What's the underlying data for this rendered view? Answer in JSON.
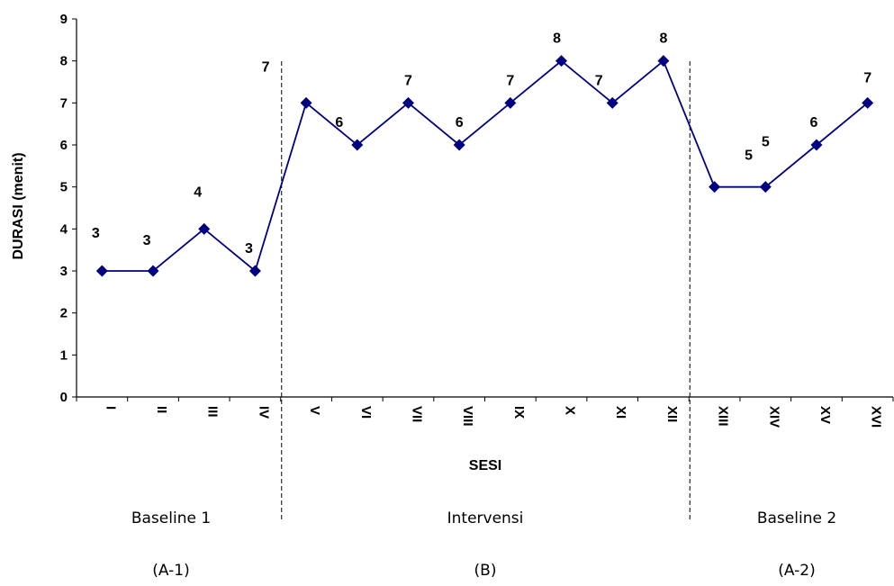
{
  "chart_data": {
    "type": "line",
    "xlabel": "SESI",
    "ylabel": "DURASI (menit)",
    "ylim": [
      0,
      9
    ],
    "yticks": [
      0,
      1,
      2,
      3,
      4,
      5,
      6,
      7,
      8,
      9
    ],
    "categories": [
      "I",
      "II",
      "III",
      "IV",
      "V",
      "VI",
      "VII",
      "VIII",
      "IX",
      "X",
      "XI",
      "XII",
      "XIII",
      "XIV",
      "XV",
      "XVI"
    ],
    "tick_labels": [
      "I",
      "II",
      "III",
      "IV",
      "V",
      "VI",
      "VII",
      "VIII",
      "IX",
      "X",
      "XI",
      "XII",
      "XIII",
      "XIV",
      "XV",
      "XVI"
    ],
    "series": [
      {
        "values": [
          3,
          3,
          4,
          3,
          7,
          6,
          7,
          6,
          7,
          8,
          7,
          8,
          5,
          5,
          6,
          7
        ],
        "color": "#000080"
      }
    ],
    "data_labels": [
      "3",
      "3",
      "4",
      "3",
      "7",
      "6",
      "7",
      "6",
      "7",
      "8",
      "7",
      "8",
      "5",
      "5",
      "6",
      "7"
    ],
    "phases": [
      {
        "name": "Baseline 1",
        "code": "(A-1)",
        "start": 0,
        "end": 3
      },
      {
        "name": "Intervensi",
        "code": "(B)",
        "start": 4,
        "end": 11
      },
      {
        "name": "Baseline 2",
        "code": "(A-2)",
        "start": 12,
        "end": 15
      }
    ],
    "grid": false,
    "legend": "none"
  }
}
